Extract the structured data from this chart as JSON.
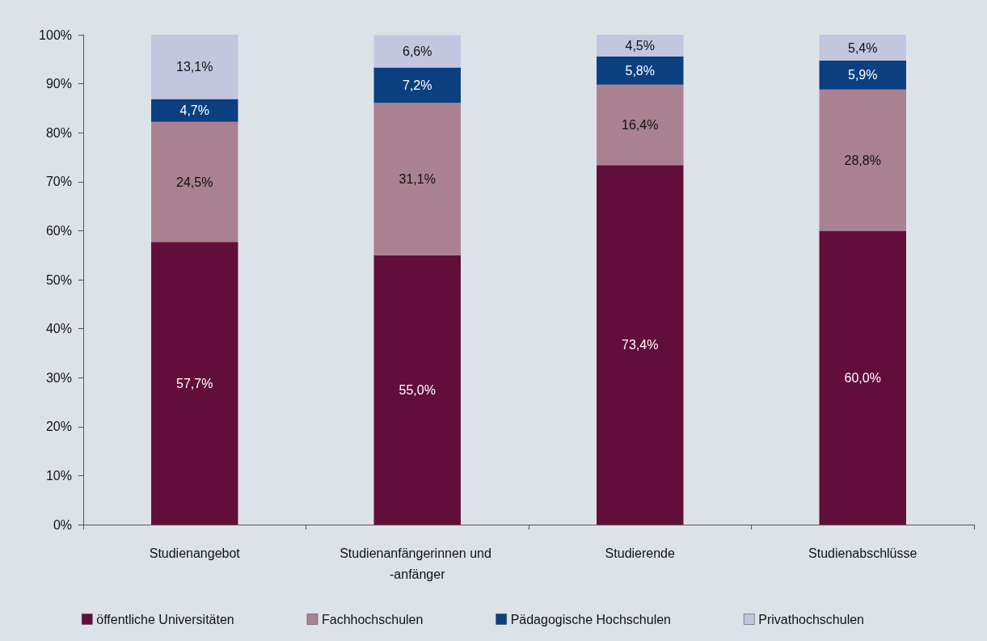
{
  "chart_data": {
    "type": "bar",
    "stacked": true,
    "categories": [
      "Studienangebot",
      "Studienanfängerinnen und -anfänger",
      "Studierende",
      "Studienabschlüsse"
    ],
    "series": [
      {
        "name": "öffentliche Universitäten",
        "color": "#620e3a",
        "values": [
          57.7,
          55.0,
          73.4,
          60.0
        ],
        "value_labels": [
          "57,7%",
          "55,0%",
          "73,4%",
          "60,0%"
        ]
      },
      {
        "name": "Fachhochschulen",
        "color": "#aa8191",
        "values": [
          24.5,
          31.1,
          16.4,
          28.8
        ],
        "value_labels": [
          "24,5%",
          "31,1%",
          "16,4%",
          "28,8%"
        ]
      },
      {
        "name": "Pädagogische Hochschulen",
        "color": "#0b3f80",
        "values": [
          4.7,
          7.2,
          5.8,
          5.9
        ],
        "value_labels": [
          "4,7%",
          "7,2%",
          "5,8%",
          "5,9%"
        ]
      },
      {
        "name": "Privathochschulen",
        "color": "#c4c6e0",
        "values": [
          13.1,
          6.6,
          4.5,
          5.4
        ],
        "value_labels": [
          "13,1%",
          "6,6%",
          "4,5%",
          "5,4%"
        ]
      }
    ],
    "ylim": [
      0,
      100
    ],
    "yticks": [
      {
        "value": 0,
        "label": "0%"
      },
      {
        "value": 10,
        "label": "10%"
      },
      {
        "value": 20,
        "label": "20%"
      },
      {
        "value": 30,
        "label": "30%"
      },
      {
        "value": 40,
        "label": "40%"
      },
      {
        "value": 50,
        "label": "50%"
      },
      {
        "value": 60,
        "label": "60%"
      },
      {
        "value": 70,
        "label": "70%"
      },
      {
        "value": 80,
        "label": "80%"
      },
      {
        "value": 90,
        "label": "90%"
      },
      {
        "value": 100,
        "label": "100%"
      }
    ],
    "grid": false,
    "legend": "bottom"
  }
}
